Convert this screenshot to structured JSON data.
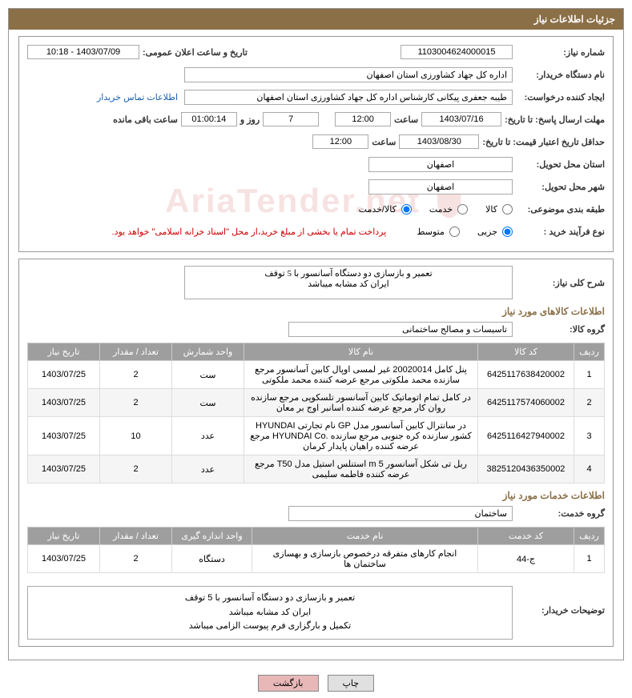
{
  "panel_title": "جزئیات اطلاعات نیاز",
  "fields": {
    "need_no_label": "شماره نیاز:",
    "need_no": "1103004624000015",
    "ann_date_label": "تاریخ و ساعت اعلان عمومی:",
    "ann_date": "1403/07/09 - 10:18",
    "buyer_label": "نام دستگاه خریدار:",
    "buyer": "اداره کل جهاد کشاورزی استان اصفهان",
    "creator_label": "ایجاد کننده درخواست:",
    "creator": "طیبه جعفری پیکانی کارشناس اداره کل جهاد کشاورزی استان اصفهان",
    "contact_link": "اطلاعات تماس خریدار",
    "response_label": "مهلت ارسال پاسخ: تا تاریخ:",
    "response_date": "1403/07/16",
    "time_label": "ساعت",
    "response_time": "12:00",
    "days": "7",
    "days_label": "روز و",
    "remaining": "01:00:14",
    "remain_label": "ساعت باقی مانده",
    "validity_label": "حداقل تاریخ اعتبار قیمت: تا تاریخ:",
    "validity_date": "1403/08/30",
    "validity_time": "12:00",
    "province_label": "استان محل تحویل:",
    "province": "اصفهان",
    "city_label": "شهر محل تحویل:",
    "city": "اصفهان",
    "category_label": "طبقه بندی موضوعی:",
    "cat_goods": "کالا",
    "cat_service": "خدمت",
    "cat_both": "کالا/خدمت",
    "process_label": "نوع فرآیند خرید :",
    "proc_small": "جزیی",
    "proc_medium": "متوسط",
    "payment_note": "پرداخت تمام یا بخشی از مبلغ خرید،از محل \"اسناد خزانه اسلامی\" خواهد بود.",
    "desc_label": "شرح کلی نیاز:",
    "desc": "تعمیر و بازسازی دو دستگاه آسانسور با 5 توقف\nایران کد مشابه میباشد",
    "goods_section": "اطلاعات کالاهای مورد نیاز",
    "goods_group_label": "گروه کالا:",
    "goods_group": "تاسیسات و مصالح ساختمانی",
    "services_section": "اطلاعات خدمات مورد نیاز",
    "service_group_label": "گروه خدمت:",
    "service_group": "ساختمان",
    "buyer_notes_label": "توضیحات خریدار:",
    "buyer_notes_l1": "تعمیر و بازسازی دو دستگاه آسانسور با 5 توقف",
    "buyer_notes_l2": "ایران کد مشابه میباشد",
    "buyer_notes_l3": "تکمیل و بارگزاری فرم پیوست الزامی میباشد"
  },
  "goods_table": {
    "headers": {
      "row": "ردیف",
      "code": "کد کالا",
      "name": "نام کالا",
      "unit": "واحد شمارش",
      "qty": "تعداد / مقدار",
      "date": "تاریخ نیاز"
    },
    "rows": [
      {
        "row": "1",
        "code": "6425117638420002",
        "name": "پنل کامل 20020014 غیر لمسی اوپال کابین آسانسور مرجع سازنده محمد ملکوتی مرجع عرضه کننده محمد ملکوتی",
        "unit": "ست",
        "qty": "2",
        "date": "1403/07/25"
      },
      {
        "row": "2",
        "code": "6425117574060002",
        "name": "در کامل تمام اتوماتیک کابین آسانسور تلسکوپی مرجع سازنده روان کار مرجع عرضه کننده اسانبر اوج بر معان",
        "unit": "ست",
        "qty": "2",
        "date": "1403/07/25"
      },
      {
        "row": "3",
        "code": "6425116427940002",
        "name": "در سانترال کابین آسانسور مدل GP نام تجارتی HYUNDAI کشور سازنده کره جنوبی مرجع سازنده .HYUNDAI Co مرجع عرضه کننده راهیان پایدار کرمان",
        "unit": "عدد",
        "qty": "10",
        "date": "1403/07/25"
      },
      {
        "row": "4",
        "code": "3825120436350002",
        "name": "ریل تی شکل آسانسور m 5 استنلس استیل مدل T50 مرجع عرضه کننده فاطمه سلیمی",
        "unit": "عدد",
        "qty": "2",
        "date": "1403/07/25"
      }
    ]
  },
  "services_table": {
    "headers": {
      "row": "ردیف",
      "code": "کد خدمت",
      "name": "نام خدمت",
      "unit": "واحد اندازه گیری",
      "qty": "تعداد / مقدار",
      "date": "تاریخ نیاز"
    },
    "rows": [
      {
        "row": "1",
        "code": "ج-44",
        "name": "انجام کارهای متفرقه درخصوص بازسازی و بهسازی ساختمان ها",
        "unit": "دستگاه",
        "qty": "2",
        "date": "1403/07/25"
      }
    ]
  },
  "buttons": {
    "print": "چاپ",
    "back": "بازگشت"
  },
  "colors": {
    "header_bg": "#8b6f47",
    "th_bg": "#9e9e9e"
  }
}
